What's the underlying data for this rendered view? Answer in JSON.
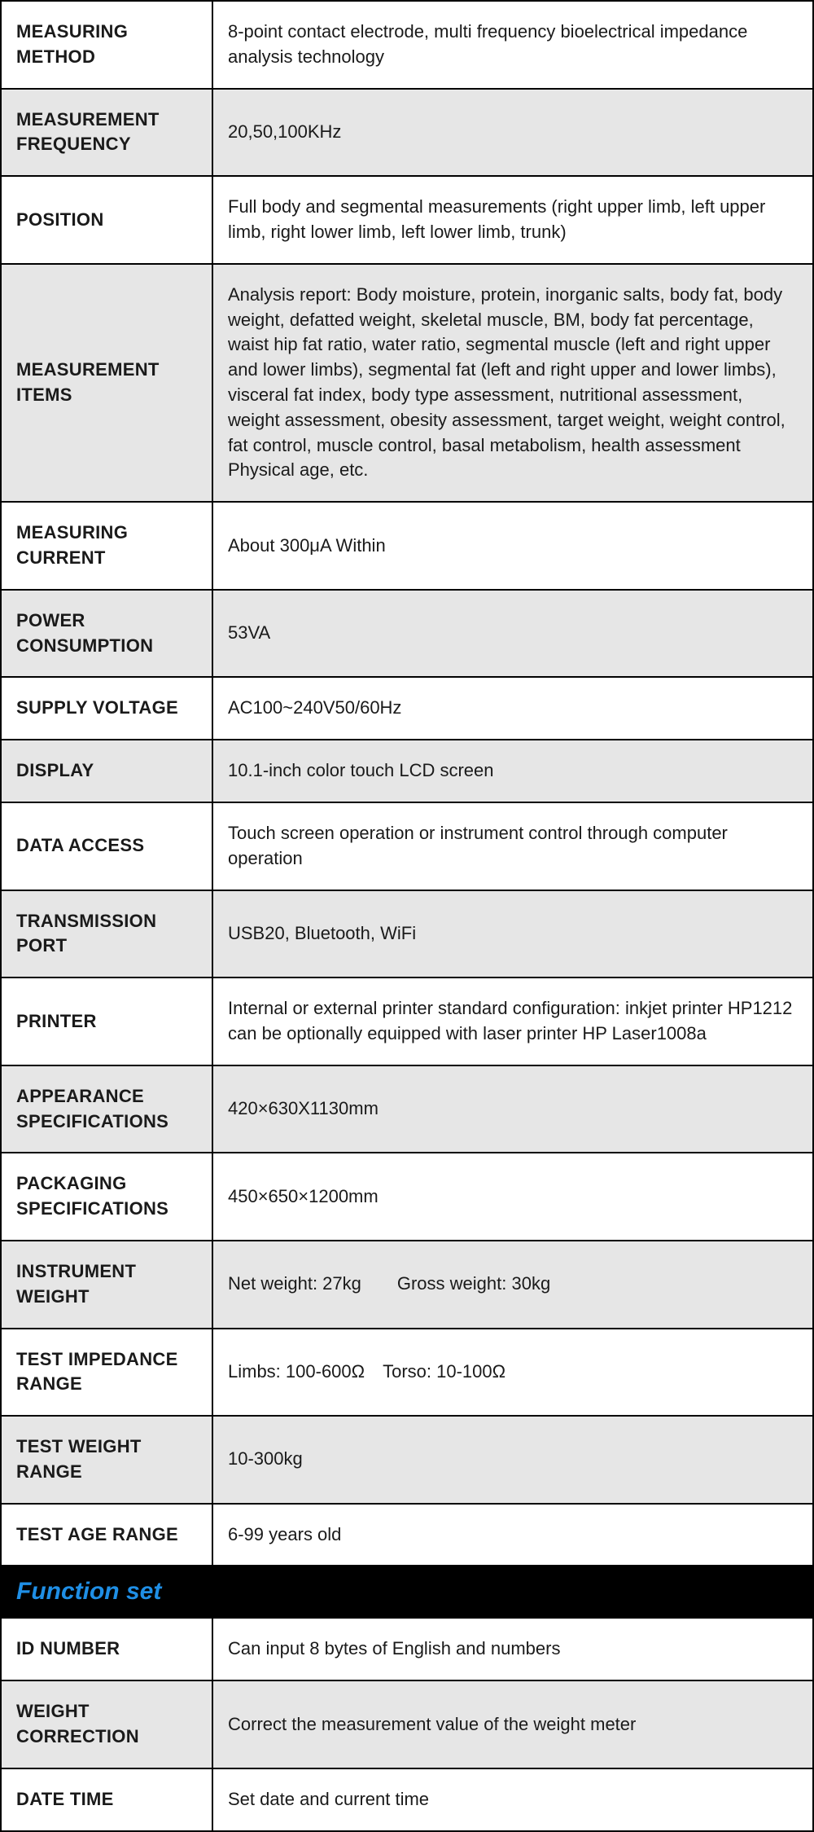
{
  "rows": [
    {
      "label": "MEASURING METHOD",
      "value": "8-point contact electrode, multi frequency bioelectrical impedance analysis technology",
      "shaded": false
    },
    {
      "label": "MEASUREMENT FREQUENCY",
      "value": "20,50,100KHz",
      "shaded": true
    },
    {
      "label": "POSITION",
      "value": "Full body and segmental measurements (right upper limb, left upper limb, right lower limb, left lower limb, trunk)",
      "shaded": false
    },
    {
      "label": "MEASUREMENT ITEMS",
      "value": "Analysis report: Body moisture, protein, inorganic salts, body fat, body weight, defatted weight, skeletal muscle, BM, body fat percentage, waist hip fat ratio, water ratio, segmental muscle (left and right upper and lower limbs), segmental fat (left and right upper and lower limbs), visceral fat index, body type assessment, nutritional assessment, weight assessment, obesity assessment, target weight, weight control, fat control, muscle control, basal metabolism, health assessment Physical age, etc.",
      "shaded": true
    },
    {
      "label": "MEASURING CURRENT",
      "value": "About 300μA Within",
      "shaded": false
    },
    {
      "label": "POWER CONSUMPTION",
      "value": "53VA",
      "shaded": true
    },
    {
      "label": "SUPPLY VOLTAGE",
      "value": "AC100~240V50/60Hz",
      "shaded": false
    },
    {
      "label": "DISPLAY",
      "value": "10.1-inch color touch LCD screen",
      "shaded": true
    },
    {
      "label": "DATA ACCESS",
      "value": "Touch screen operation or instrument control through computer operation",
      "shaded": false
    },
    {
      "label": "TRANSMISSION PORT",
      "value": "USB20, Bluetooth, WiFi",
      "shaded": true
    },
    {
      "label": "PRINTER",
      "value": "Internal or external printer standard configuration: inkjet printer HP1212 can be optionally equipped with laser printer HP Laser1008a",
      "shaded": false
    },
    {
      "label": "APPEARANCE SPECIFICATIONS",
      "value": "420×630X1130mm",
      "shaded": true
    },
    {
      "label": "PACKAGING SPECIFICATIONS",
      "value": "450×650×1200mm",
      "shaded": false
    },
    {
      "label": "INSTRUMENT WEIGHT",
      "value": "Net weight: 27kg  Gross weight: 30kg",
      "shaded": true
    },
    {
      "label": "TEST IMPEDANCE RANGE",
      "value": "Limbs: 100-600Ω Torso: 10-100Ω",
      "shaded": false
    },
    {
      "label": "TEST WEIGHT RANGE",
      "value": "10-300kg",
      "shaded": true
    },
    {
      "label": "TEST AGE RANGE",
      "value": "6-99 years old",
      "shaded": false
    }
  ],
  "section_header": "Function set",
  "rows2": [
    {
      "label": "ID NUMBER",
      "value": "Can input 8 bytes of English and numbers",
      "shaded": false
    },
    {
      "label": "WEIGHT CORRECTION",
      "value": "Correct the measurement value of the weight meter",
      "shaded": true
    },
    {
      "label": "DATE TIME",
      "value": "Set date and current time",
      "shaded": false
    }
  ]
}
